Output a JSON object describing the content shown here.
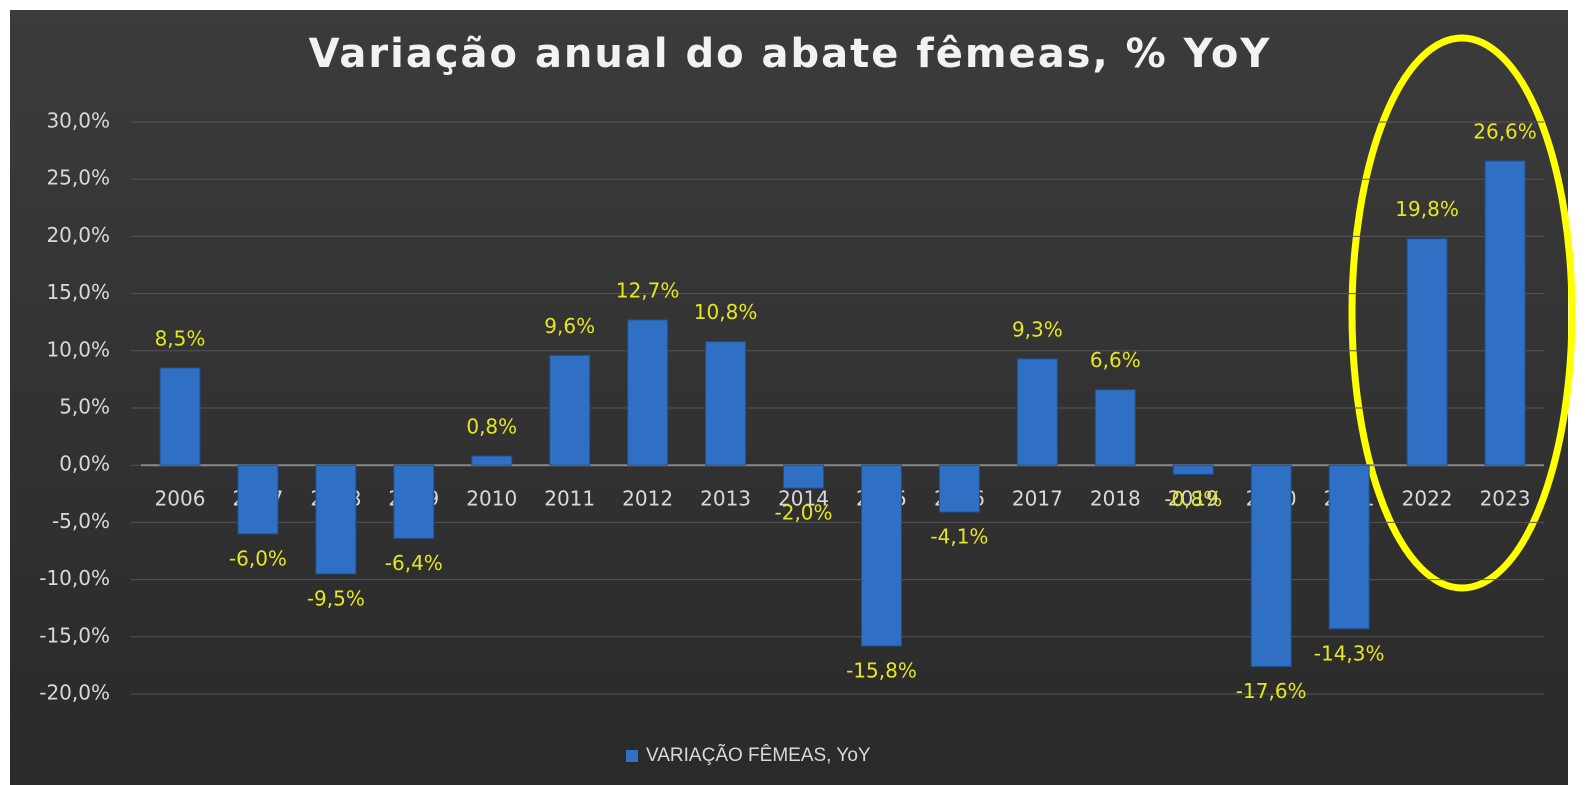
{
  "chart_data": {
    "type": "bar",
    "title": "Variação anual do abate fêmeas, % YoY",
    "categories": [
      "2006",
      "2007",
      "2008",
      "2009",
      "2010",
      "2011",
      "2012",
      "2013",
      "2014",
      "2015",
      "2016",
      "2017",
      "2018",
      "2019",
      "2020",
      "2021",
      "2022",
      "2023"
    ],
    "series": [
      {
        "name": "VARIAÇÃO FÊMEAS, YoY",
        "color": "#2f6fc4",
        "values": [
          8.5,
          -6.0,
          -9.5,
          -6.4,
          0.8,
          9.6,
          12.7,
          10.8,
          -2.0,
          -15.8,
          -4.1,
          9.3,
          6.6,
          -0.8,
          -17.6,
          -14.3,
          19.8,
          26.6
        ],
        "value_labels": [
          "8,5%",
          "-6,0%",
          "-9,5%",
          "-6,4%",
          "0,8%",
          "9,6%",
          "12,7%",
          "10,8%",
          "-2,0%",
          "-15,8%",
          "-4,1%",
          "9,3%",
          "6,6%",
          "-0,8%",
          "-17,6%",
          "-14,3%",
          "19,8%",
          "26,6%"
        ]
      }
    ],
    "ylim": [
      -20,
      30
    ],
    "yticks": [
      {
        "value": 30,
        "label": "30,0%"
      },
      {
        "value": 25,
        "label": "25,0%"
      },
      {
        "value": 20,
        "label": "20,0%"
      },
      {
        "value": 15,
        "label": "15,0%"
      },
      {
        "value": 10,
        "label": "10,0%"
      },
      {
        "value": 5,
        "label": "5,0%"
      },
      {
        "value": 0,
        "label": "0,0%"
      },
      {
        "value": -5,
        "label": "-5,0%"
      },
      {
        "value": -10,
        "label": "-10,0%"
      },
      {
        "value": -15,
        "label": "-15,0%"
      },
      {
        "value": -20,
        "label": "-20,0%"
      }
    ],
    "grid": true,
    "legend": "bottom"
  }
}
